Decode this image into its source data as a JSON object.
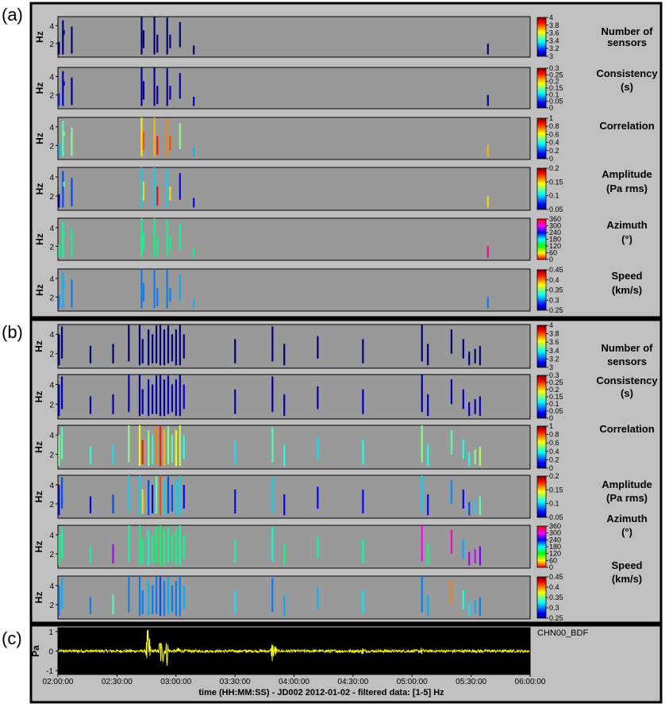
{
  "panel_labels": [
    "(a)",
    "(b)",
    "(c)"
  ],
  "colors": {
    "frame_bg": "#c0c0c0",
    "plot_bg": "#999999",
    "wave_bg": "#000000",
    "wave": "#ffff00"
  },
  "chart_data": [
    {
      "type": "heatmap",
      "panel": "(a)",
      "ylabel": "Hz",
      "yticks": [
        "4",
        "2"
      ],
      "ylim": [
        0.5,
        5
      ],
      "xlim": [
        "02:00:00",
        "06:00:00"
      ],
      "rows": [
        {
          "title": [
            "Number of",
            "sensors"
          ],
          "colormap": "jet",
          "ticks": [
            "4",
            "3.8",
            "3.6",
            "3.4",
            "3.2",
            "3"
          ]
        },
        {
          "title": [
            "Consistency",
            "(s)"
          ],
          "colormap": "jet",
          "ticks": [
            "0.3",
            "0.25",
            "0.2",
            "0.15",
            "0.1",
            "0.05",
            "0"
          ]
        },
        {
          "title": [
            "Correlation"
          ],
          "colormap": "jet",
          "ticks": [
            "1",
            "0.8",
            "0.6",
            "0.4",
            "0.2",
            "0"
          ]
        },
        {
          "title": [
            "Amplitude",
            "(Pa rms)"
          ],
          "colormap": "jet",
          "ticks": [
            "0.2",
            "0.15",
            "0.1",
            "0.05"
          ]
        },
        {
          "title": [
            "Azimuth",
            "(°)"
          ],
          "colormap": "hsv",
          "ticks": [
            "360",
            "300",
            "240",
            "180",
            "120",
            "60",
            "0"
          ]
        },
        {
          "title": [
            "Speed",
            "(km/s)"
          ],
          "colormap": "jet",
          "ticks": [
            "0.45",
            "0.4",
            "0.35",
            "0.3",
            "0.25"
          ]
        }
      ],
      "detections": [
        {
          "t": "02:00:30",
          "f": [
            0.8,
            2.2
          ],
          "v": [
            3,
            0.05,
            0.3,
            0.06,
            150,
            0.3
          ]
        },
        {
          "t": "02:02:30",
          "f": [
            0.8,
            4.6
          ],
          "v": [
            3,
            0.02,
            0.45,
            0.08,
            155,
            0.31
          ]
        },
        {
          "t": "02:03:00",
          "f": [
            3.0,
            3.5
          ],
          "v": [
            3,
            0.02,
            0.5,
            0.12,
            150,
            0.31
          ]
        },
        {
          "t": "02:07:00",
          "f": [
            0.9,
            3.9
          ],
          "v": [
            3,
            0.01,
            0.5,
            0.08,
            150,
            0.3
          ]
        },
        {
          "t": "02:42:30",
          "f": [
            0.8,
            5.0
          ],
          "v": [
            3,
            0.01,
            0.65,
            0.1,
            150,
            0.3
          ]
        },
        {
          "t": "02:43:30",
          "f": [
            1.5,
            3.5
          ],
          "v": [
            3,
            0.01,
            0.8,
            0.15,
            150,
            0.3
          ]
        },
        {
          "t": "02:49:00",
          "f": [
            0.8,
            5.0
          ],
          "v": [
            3,
            0.01,
            0.7,
            0.1,
            145,
            0.3
          ]
        },
        {
          "t": "02:50:30",
          "f": [
            1.0,
            3.0
          ],
          "v": [
            3,
            0.01,
            0.85,
            0.18,
            145,
            0.3
          ]
        },
        {
          "t": "02:55:30",
          "f": [
            0.8,
            4.9
          ],
          "v": [
            3,
            0.01,
            0.75,
            0.1,
            150,
            0.3
          ]
        },
        {
          "t": "02:57:00",
          "f": [
            1.5,
            3.0
          ],
          "v": [
            3,
            0.01,
            0.8,
            0.15,
            150,
            0.3
          ]
        },
        {
          "t": "03:02:00",
          "f": [
            1.6,
            4.4
          ],
          "v": [
            3,
            0.02,
            0.5,
            0.07,
            155,
            0.31
          ]
        },
        {
          "t": "03:09:00",
          "f": [
            0.8,
            1.8
          ],
          "v": [
            3,
            0.02,
            0.3,
            0.07,
            150,
            0.31
          ]
        },
        {
          "t": "05:38:30",
          "f": [
            0.8,
            2.0
          ],
          "v": [
            3,
            0.01,
            0.7,
            0.15,
            330,
            0.3
          ]
        }
      ]
    },
    {
      "type": "heatmap",
      "panel": "(b)",
      "ylabel": "Hz",
      "yticks": [
        "4",
        "2"
      ],
      "ylim": [
        0.5,
        5
      ],
      "xlim": [
        "02:00:00",
        "06:00:00"
      ],
      "rows": [
        {
          "title": [
            "Number of",
            "sensors"
          ],
          "colormap": "jet",
          "ticks": [
            "4",
            "3.8",
            "3.6",
            "3.4",
            "3.2",
            "3"
          ]
        },
        {
          "title": [
            "Consistency",
            "(s)"
          ],
          "colormap": "jet",
          "ticks": [
            "0.3",
            "0.25",
            "0.2",
            "0.15",
            "0.1",
            "0.05",
            "0"
          ]
        },
        {
          "title": [
            "Correlation"
          ],
          "colormap": "jet",
          "ticks": [
            "1",
            "0.8",
            "0.6",
            "0.4",
            "0.2",
            "0"
          ]
        },
        {
          "title": [
            "Amplitude",
            "(Pa rms)"
          ],
          "colormap": "jet",
          "ticks": [
            "0.2",
            "0.15",
            "0.1",
            "0.05"
          ]
        },
        {
          "title": [
            "Azimuth",
            "(°)"
          ],
          "colormap": "hsv",
          "ticks": [
            "360",
            "300",
            "240",
            "180",
            "120",
            "60",
            "0"
          ]
        },
        {
          "title": [
            "Speed",
            "(km/s)"
          ],
          "colormap": "jet",
          "ticks": [
            "0.45",
            "0.4",
            "0.35",
            "0.3",
            "0.25"
          ]
        }
      ],
      "detections": [
        {
          "t": "02:00:30",
          "f": [
            0.8,
            4.0
          ],
          "v": [
            3,
            0.03,
            0.5,
            0.07,
            150,
            0.3
          ]
        },
        {
          "t": "02:02:00",
          "f": [
            1.5,
            4.8
          ],
          "v": [
            3,
            0.02,
            0.45,
            0.08,
            155,
            0.31
          ]
        },
        {
          "t": "02:16:30",
          "f": [
            1.0,
            2.8
          ],
          "v": [
            3,
            0.02,
            0.4,
            0.07,
            160,
            0.3
          ]
        },
        {
          "t": "02:28:00",
          "f": [
            1.0,
            3.0
          ],
          "v": [
            3,
            0.02,
            0.35,
            0.08,
            280,
            0.34
          ]
        },
        {
          "t": "02:36:00",
          "f": [
            1.2,
            5.0
          ],
          "v": [
            3,
            0.02,
            0.5,
            0.1,
            160,
            0.3
          ]
        },
        {
          "t": "02:41:30",
          "f": [
            0.8,
            5.0
          ],
          "v": [
            3,
            0.01,
            0.6,
            0.1,
            150,
            0.3
          ]
        },
        {
          "t": "02:43:00",
          "f": [
            1.0,
            3.5
          ],
          "v": [
            3,
            0.01,
            0.85,
            0.15,
            150,
            0.3
          ]
        },
        {
          "t": "02:46:00",
          "f": [
            0.8,
            4.5
          ],
          "v": [
            3,
            0.02,
            0.5,
            0.08,
            165,
            0.31
          ]
        },
        {
          "t": "02:48:00",
          "f": [
            1.0,
            4.0
          ],
          "v": [
            3,
            0.02,
            0.4,
            0.07,
            150,
            0.3
          ]
        },
        {
          "t": "02:50:00",
          "f": [
            1.0,
            4.9
          ],
          "v": [
            3,
            0.01,
            0.75,
            0.12,
            145,
            0.3
          ]
        },
        {
          "t": "02:52:00",
          "f": [
            0.8,
            5.0
          ],
          "v": [
            3,
            0.01,
            0.85,
            0.17,
            140,
            0.29
          ]
        },
        {
          "t": "02:54:00",
          "f": [
            0.8,
            4.5
          ],
          "v": [
            3,
            0.01,
            0.7,
            0.1,
            150,
            0.3
          ]
        },
        {
          "t": "02:56:00",
          "f": [
            1.0,
            4.9
          ],
          "v": [
            3,
            0.02,
            0.5,
            0.08,
            155,
            0.31
          ]
        },
        {
          "t": "02:58:00",
          "f": [
            1.2,
            4.0
          ],
          "v": [
            3,
            0.02,
            0.45,
            0.08,
            150,
            0.3
          ]
        },
        {
          "t": "03:00:00",
          "f": [
            0.8,
            4.5
          ],
          "v": [
            3,
            0.02,
            0.6,
            0.1,
            150,
            0.3
          ]
        },
        {
          "t": "03:02:00",
          "f": [
            0.8,
            5.0
          ],
          "v": [
            3,
            0.01,
            0.55,
            0.1,
            160,
            0.3
          ]
        },
        {
          "t": "03:04:00",
          "f": [
            1.5,
            4.0
          ],
          "v": [
            3,
            0.03,
            0.4,
            0.07,
            150,
            0.31
          ]
        },
        {
          "t": "03:30:00",
          "f": [
            1.0,
            3.5
          ],
          "v": [
            3,
            0.02,
            0.35,
            0.07,
            160,
            0.32
          ]
        },
        {
          "t": "03:49:00",
          "f": [
            1.2,
            4.8
          ],
          "v": [
            3,
            0.01,
            0.45,
            0.1,
            170,
            0.3
          ]
        },
        {
          "t": "03:55:00",
          "f": [
            0.8,
            3.0
          ],
          "v": [
            3,
            0.02,
            0.4,
            0.07,
            150,
            0.31
          ]
        },
        {
          "t": "04:12:00",
          "f": [
            1.5,
            3.8
          ],
          "v": [
            3,
            0.02,
            0.35,
            0.07,
            155,
            0.31
          ]
        },
        {
          "t": "04:35:00",
          "f": [
            1.0,
            3.5
          ],
          "v": [
            3,
            0.02,
            0.4,
            0.07,
            160,
            0.32
          ]
        },
        {
          "t": "05:05:00",
          "f": [
            1.2,
            5.0
          ],
          "v": [
            3,
            0.01,
            0.5,
            0.1,
            300,
            0.3
          ]
        },
        {
          "t": "05:08:00",
          "f": [
            0.8,
            3.0
          ],
          "v": [
            3,
            0.02,
            0.4,
            0.07,
            150,
            0.31
          ]
        },
        {
          "t": "05:20:00",
          "f": [
            2.0,
            4.5
          ],
          "v": [
            3,
            0.02,
            0.45,
            0.09,
            310,
            0.4
          ]
        },
        {
          "t": "05:26:00",
          "f": [
            1.5,
            3.5
          ],
          "v": [
            3,
            0.02,
            0.4,
            0.07,
            200,
            0.33
          ]
        },
        {
          "t": "05:29:00",
          "f": [
            0.8,
            2.2
          ],
          "v": [
            3,
            0.02,
            0.4,
            0.08,
            280,
            0.32
          ]
        },
        {
          "t": "05:32:00",
          "f": [
            1.0,
            2.5
          ],
          "v": [
            3,
            0.02,
            0.5,
            0.1,
            290,
            0.31
          ]
        },
        {
          "t": "05:34:30",
          "f": [
            0.8,
            2.8
          ],
          "v": [
            3,
            0.02,
            0.55,
            0.12,
            270,
            0.3
          ]
        }
      ]
    },
    {
      "type": "line",
      "panel": "(c)",
      "ylabel": "Pa",
      "yticks": [
        "1",
        "0",
        "-1"
      ],
      "ylim": [
        -1.2,
        1.2
      ],
      "station": "CHN00_BDF",
      "xticks": [
        "02:00:00",
        "02:30:00",
        "03:00:00",
        "03:30:00",
        "04:00:00",
        "04:30:00",
        "05:00:00",
        "05:30:00",
        "06:00:00"
      ],
      "xlabel": "time (HH:MM:SS) - JD002 2012-01-02 - filtered data: [1-5] Hz",
      "noise_amplitude": 0.07,
      "bursts": [
        {
          "t": "02:45:30",
          "amp": 1.1
        },
        {
          "t": "02:46:30",
          "amp": 0.7
        },
        {
          "t": "02:52:00",
          "amp": 0.9
        },
        {
          "t": "02:53:30",
          "amp": 0.6
        },
        {
          "t": "02:55:30",
          "amp": 0.75
        },
        {
          "t": "03:01:30",
          "amp": 0.3
        },
        {
          "t": "03:49:00",
          "amp": 0.6
        },
        {
          "t": "03:50:30",
          "amp": 0.3
        },
        {
          "t": "04:35:00",
          "amp": 0.15
        },
        {
          "t": "05:05:00",
          "amp": 0.15
        }
      ]
    }
  ]
}
